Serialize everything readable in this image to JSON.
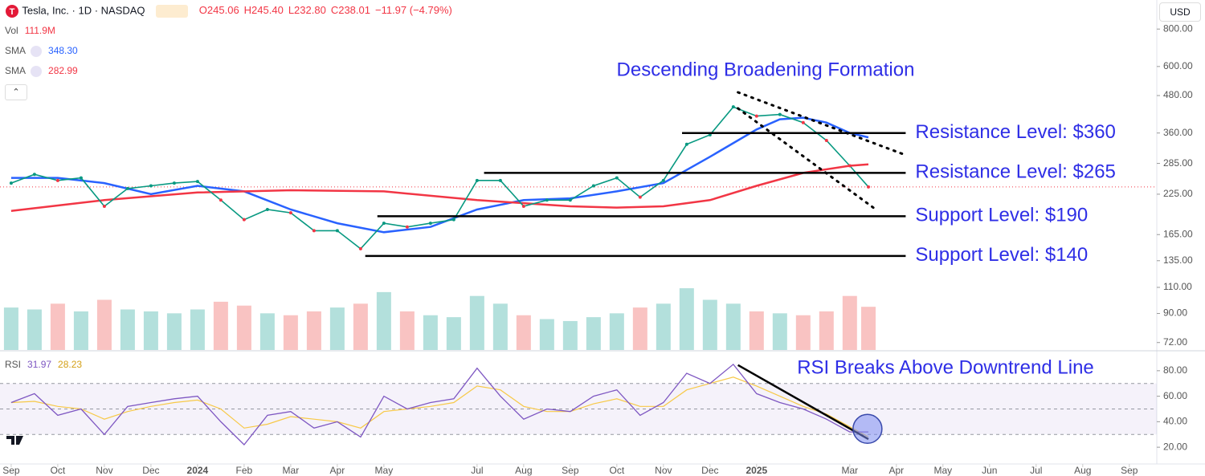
{
  "chart_data": {
    "type": "candlestick",
    "symbol": "Tesla, Inc. · 1D · NASDAQ",
    "ohlc": [
      "O245.06",
      "H245.40",
      "L232.80",
      "C238.01",
      "−11.97 (−4.79%)"
    ],
    "currency": "USD",
    "volume_label": "Vol",
    "volume_value": "111.9M",
    "title": "Descending Broadening Formation",
    "log_scale": true,
    "ylim": [
      68,
      1000
    ],
    "yticks": [
      {
        "value": 800,
        "label": "800.00"
      },
      {
        "value": 600,
        "label": "600.00"
      },
      {
        "value": 480,
        "label": "480.00"
      },
      {
        "value": 360,
        "label": "360.00"
      },
      {
        "value": 285,
        "label": "285.00"
      },
      {
        "value": 225,
        "label": "225.00"
      },
      {
        "value": 165,
        "label": "165.00"
      },
      {
        "value": 135,
        "label": "135.00"
      },
      {
        "value": 110,
        "label": "110.00"
      },
      {
        "value": 90,
        "label": "90.00"
      },
      {
        "value": 72,
        "label": "72.00"
      }
    ],
    "xlim": [
      -0.24,
      24.59
    ],
    "xticks": [
      {
        "value": 0,
        "label": "Sep"
      },
      {
        "value": 1,
        "label": "Oct"
      },
      {
        "value": 2,
        "label": "Nov"
      },
      {
        "value": 3,
        "label": "Dec"
      },
      {
        "value": 4,
        "label": "2024"
      },
      {
        "value": 5,
        "label": "Feb"
      },
      {
        "value": 6,
        "label": "Mar"
      },
      {
        "value": 7,
        "label": "Apr"
      },
      {
        "value": 8,
        "label": "May"
      },
      {
        "value": 10,
        "label": "Jul"
      },
      {
        "value": 11,
        "label": "Aug"
      },
      {
        "value": 12,
        "label": "Sep"
      },
      {
        "value": 13,
        "label": "Oct"
      },
      {
        "value": 14,
        "label": "Nov"
      },
      {
        "value": 15,
        "label": "Dec"
      },
      {
        "value": 16,
        "label": "2025"
      },
      {
        "value": 18,
        "label": "Mar"
      },
      {
        "value": 19,
        "label": "Apr"
      },
      {
        "value": 20,
        "label": "May"
      },
      {
        "value": 21,
        "label": "Jun"
      },
      {
        "value": 22,
        "label": "Jul"
      },
      {
        "value": 23,
        "label": "Aug"
      },
      {
        "value": 24,
        "label": "Sep"
      }
    ],
    "x": [
      0,
      0.5,
      1,
      1.5,
      2,
      2.5,
      3,
      3.5,
      4,
      4.5,
      5,
      5.5,
      6,
      6.5,
      7,
      7.5,
      8,
      8.5,
      9,
      9.5,
      10,
      10.5,
      11,
      11.5,
      12,
      12.5,
      13,
      13.5,
      14,
      14.5,
      15,
      15.5,
      16,
      16.5,
      17,
      17.5,
      18,
      18.4
    ],
    "close": [
      245,
      262,
      250,
      255,
      205,
      235,
      240,
      245,
      248,
      215,
      185,
      200,
      195,
      170,
      170,
      148,
      180,
      175,
      180,
      185,
      250,
      250,
      205,
      215,
      215,
      240,
      255,
      220,
      250,
      330,
      355,
      440,
      410,
      415,
      390,
      340,
      280,
      238
    ],
    "close_color": "#089981",
    "volume": [
      110,
      105,
      120,
      100,
      130,
      105,
      100,
      95,
      105,
      125,
      115,
      95,
      90,
      100,
      110,
      120,
      150,
      100,
      90,
      85,
      140,
      120,
      90,
      80,
      75,
      85,
      95,
      110,
      120,
      160,
      130,
      120,
      100,
      95,
      90,
      100,
      140,
      111.9
    ],
    "volume_lim": [
      0,
      260
    ],
    "sma": [
      {
        "label": "SMA",
        "value_label": "348.30",
        "color": "#2962ff",
        "x": [
          0,
          1,
          2,
          3,
          4,
          5,
          6,
          7,
          8,
          9,
          10,
          11,
          12,
          13,
          14,
          15,
          16,
          16.5,
          17,
          17.5,
          18,
          18.4
        ],
        "values": [
          255,
          255,
          245,
          225,
          240,
          230,
          200,
          180,
          168,
          175,
          200,
          215,
          218,
          230,
          245,
          300,
          370,
          400,
          405,
          390,
          360,
          348.3
        ]
      },
      {
        "label": "SMA",
        "value_label": "282.99",
        "color": "#f23645",
        "x": [
          0,
          2,
          4,
          6,
          8,
          10,
          12,
          13,
          14,
          15,
          16,
          17,
          18,
          18.4
        ],
        "values": [
          198,
          215,
          228,
          232,
          230,
          215,
          205,
          203,
          205,
          215,
          240,
          265,
          280,
          282.99
        ]
      }
    ],
    "levels": [
      {
        "label": "Resistance Level: $360",
        "value": 360,
        "x_start": 14.4
      },
      {
        "label": "Resistance Level: $265",
        "value": 265,
        "x_start": 10.15
      },
      {
        "label": "Support Level: $190",
        "value": 190,
        "x_start": 7.86
      },
      {
        "label": "Support Level: $140",
        "value": 140,
        "x_start": 7.6
      }
    ],
    "levels_x_end": 19.2,
    "pattern_lines": [
      {
        "x": [
          15.6,
          19.15
        ],
        "values": [
          492,
          306
        ]
      },
      {
        "x": [
          15.6,
          18.6
        ],
        "values": [
          435,
          198
        ]
      }
    ],
    "rsi": {
      "label": "RSI",
      "value_label": "31.97",
      "signal_label": "28.23",
      "title": "RSI Breaks Above Downtrend Line",
      "values": [
        55,
        62,
        45,
        50,
        30,
        52,
        55,
        58,
        60,
        40,
        22,
        45,
        48,
        35,
        40,
        28,
        60,
        50,
        55,
        58,
        82,
        60,
        42,
        50,
        48,
        60,
        65,
        45,
        55,
        78,
        70,
        85,
        62,
        55,
        50,
        42,
        32,
        31.97
      ],
      "signal": [
        55,
        56,
        52,
        50,
        42,
        48,
        52,
        55,
        57,
        50,
        35,
        38,
        44,
        42,
        40,
        35,
        48,
        50,
        52,
        55,
        68,
        65,
        52,
        48,
        48,
        54,
        58,
        52,
        52,
        65,
        70,
        75,
        68,
        60,
        52,
        46,
        36,
        28.23
      ],
      "color": "#7e57c2",
      "signal_color": "#f7c948",
      "ylim": [
        8.75,
        93.75
      ],
      "yticks": [
        {
          "value": 20,
          "label": "20.00"
        },
        {
          "value": 40,
          "label": "40.00"
        },
        {
          "value": 60,
          "label": "60.00"
        },
        {
          "value": 80,
          "label": "80.00"
        }
      ],
      "bands": [
        30,
        50,
        70
      ],
      "trendline": {
        "x": [
          15.6,
          18.4
        ],
        "values": [
          84.4,
          26.3
        ]
      },
      "highlight": {
        "x": 18.38,
        "value": 34.4
      }
    }
  }
}
